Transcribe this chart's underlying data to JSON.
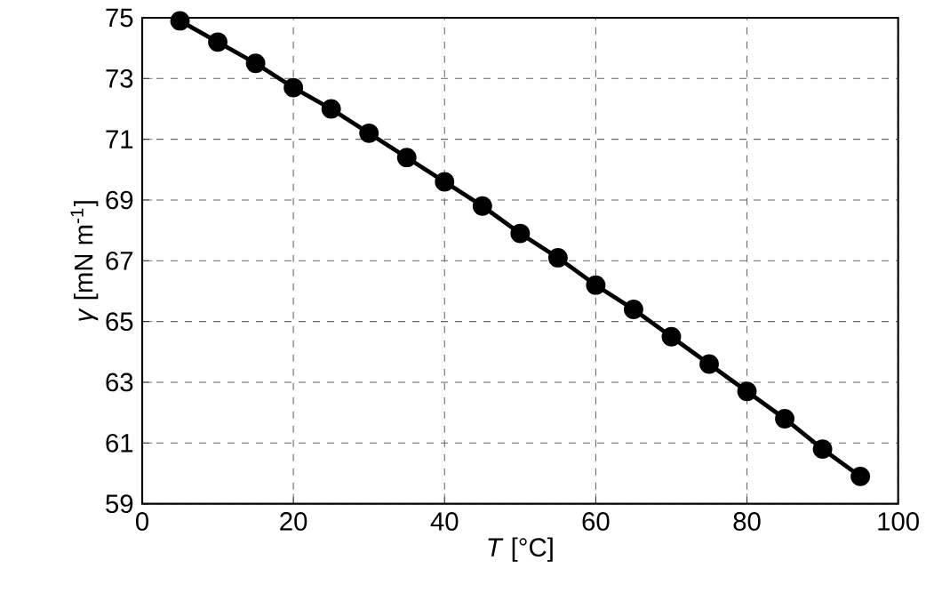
{
  "chart_data": {
    "type": "line",
    "xlabel": "*T* [°C]",
    "ylabel": "*γ* [mN m$^{-1}$]",
    "x": [
      5,
      10,
      15,
      20,
      25,
      30,
      35,
      40,
      45,
      50,
      55,
      60,
      65,
      70,
      75,
      80,
      85,
      90,
      95
    ],
    "series": [
      {
        "color": "#000000",
        "values": [
          74.9,
          74.2,
          73.5,
          72.7,
          72.0,
          71.2,
          70.4,
          69.6,
          68.8,
          67.9,
          67.1,
          66.2,
          65.4,
          64.5,
          63.6,
          62.7,
          61.8,
          60.8,
          59.9
        ]
      }
    ],
    "xlim": [
      0,
      100
    ],
    "ylim": [
      59,
      75
    ],
    "xticks": [
      0,
      20,
      40,
      60,
      80,
      100
    ],
    "yticks": [
      59,
      61,
      63,
      65,
      67,
      69,
      71,
      73,
      75
    ],
    "grid": true,
    "marker": "circle",
    "line_style": "solid"
  }
}
